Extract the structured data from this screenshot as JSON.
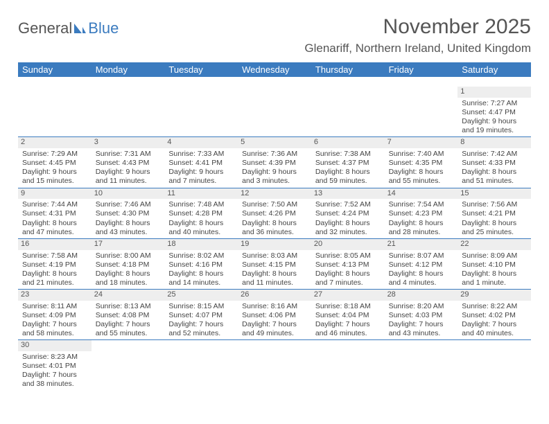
{
  "logo": {
    "text1": "General",
    "text2": "Blue"
  },
  "title": "November 2025",
  "location": "Glenariff, Northern Ireland, United Kingdom",
  "colors": {
    "header_bg": "#3b7bbf",
    "header_text": "#ffffff",
    "daynum_bg": "#eeeeee",
    "text": "#444444",
    "logo_gray": "#555555",
    "logo_blue": "#3b7bbf"
  },
  "weekdays": [
    "Sunday",
    "Monday",
    "Tuesday",
    "Wednesday",
    "Thursday",
    "Friday",
    "Saturday"
  ],
  "weeks": [
    [
      null,
      null,
      null,
      null,
      null,
      null,
      {
        "n": "1",
        "sr": "Sunrise: 7:27 AM",
        "ss": "Sunset: 4:47 PM",
        "d1": "Daylight: 9 hours",
        "d2": "and 19 minutes."
      }
    ],
    [
      {
        "n": "2",
        "sr": "Sunrise: 7:29 AM",
        "ss": "Sunset: 4:45 PM",
        "d1": "Daylight: 9 hours",
        "d2": "and 15 minutes."
      },
      {
        "n": "3",
        "sr": "Sunrise: 7:31 AM",
        "ss": "Sunset: 4:43 PM",
        "d1": "Daylight: 9 hours",
        "d2": "and 11 minutes."
      },
      {
        "n": "4",
        "sr": "Sunrise: 7:33 AM",
        "ss": "Sunset: 4:41 PM",
        "d1": "Daylight: 9 hours",
        "d2": "and 7 minutes."
      },
      {
        "n": "5",
        "sr": "Sunrise: 7:36 AM",
        "ss": "Sunset: 4:39 PM",
        "d1": "Daylight: 9 hours",
        "d2": "and 3 minutes."
      },
      {
        "n": "6",
        "sr": "Sunrise: 7:38 AM",
        "ss": "Sunset: 4:37 PM",
        "d1": "Daylight: 8 hours",
        "d2": "and 59 minutes."
      },
      {
        "n": "7",
        "sr": "Sunrise: 7:40 AM",
        "ss": "Sunset: 4:35 PM",
        "d1": "Daylight: 8 hours",
        "d2": "and 55 minutes."
      },
      {
        "n": "8",
        "sr": "Sunrise: 7:42 AM",
        "ss": "Sunset: 4:33 PM",
        "d1": "Daylight: 8 hours",
        "d2": "and 51 minutes."
      }
    ],
    [
      {
        "n": "9",
        "sr": "Sunrise: 7:44 AM",
        "ss": "Sunset: 4:31 PM",
        "d1": "Daylight: 8 hours",
        "d2": "and 47 minutes."
      },
      {
        "n": "10",
        "sr": "Sunrise: 7:46 AM",
        "ss": "Sunset: 4:30 PM",
        "d1": "Daylight: 8 hours",
        "d2": "and 43 minutes."
      },
      {
        "n": "11",
        "sr": "Sunrise: 7:48 AM",
        "ss": "Sunset: 4:28 PM",
        "d1": "Daylight: 8 hours",
        "d2": "and 40 minutes."
      },
      {
        "n": "12",
        "sr": "Sunrise: 7:50 AM",
        "ss": "Sunset: 4:26 PM",
        "d1": "Daylight: 8 hours",
        "d2": "and 36 minutes."
      },
      {
        "n": "13",
        "sr": "Sunrise: 7:52 AM",
        "ss": "Sunset: 4:24 PM",
        "d1": "Daylight: 8 hours",
        "d2": "and 32 minutes."
      },
      {
        "n": "14",
        "sr": "Sunrise: 7:54 AM",
        "ss": "Sunset: 4:23 PM",
        "d1": "Daylight: 8 hours",
        "d2": "and 28 minutes."
      },
      {
        "n": "15",
        "sr": "Sunrise: 7:56 AM",
        "ss": "Sunset: 4:21 PM",
        "d1": "Daylight: 8 hours",
        "d2": "and 25 minutes."
      }
    ],
    [
      {
        "n": "16",
        "sr": "Sunrise: 7:58 AM",
        "ss": "Sunset: 4:19 PM",
        "d1": "Daylight: 8 hours",
        "d2": "and 21 minutes."
      },
      {
        "n": "17",
        "sr": "Sunrise: 8:00 AM",
        "ss": "Sunset: 4:18 PM",
        "d1": "Daylight: 8 hours",
        "d2": "and 18 minutes."
      },
      {
        "n": "18",
        "sr": "Sunrise: 8:02 AM",
        "ss": "Sunset: 4:16 PM",
        "d1": "Daylight: 8 hours",
        "d2": "and 14 minutes."
      },
      {
        "n": "19",
        "sr": "Sunrise: 8:03 AM",
        "ss": "Sunset: 4:15 PM",
        "d1": "Daylight: 8 hours",
        "d2": "and 11 minutes."
      },
      {
        "n": "20",
        "sr": "Sunrise: 8:05 AM",
        "ss": "Sunset: 4:13 PM",
        "d1": "Daylight: 8 hours",
        "d2": "and 7 minutes."
      },
      {
        "n": "21",
        "sr": "Sunrise: 8:07 AM",
        "ss": "Sunset: 4:12 PM",
        "d1": "Daylight: 8 hours",
        "d2": "and 4 minutes."
      },
      {
        "n": "22",
        "sr": "Sunrise: 8:09 AM",
        "ss": "Sunset: 4:10 PM",
        "d1": "Daylight: 8 hours",
        "d2": "and 1 minute."
      }
    ],
    [
      {
        "n": "23",
        "sr": "Sunrise: 8:11 AM",
        "ss": "Sunset: 4:09 PM",
        "d1": "Daylight: 7 hours",
        "d2": "and 58 minutes."
      },
      {
        "n": "24",
        "sr": "Sunrise: 8:13 AM",
        "ss": "Sunset: 4:08 PM",
        "d1": "Daylight: 7 hours",
        "d2": "and 55 minutes."
      },
      {
        "n": "25",
        "sr": "Sunrise: 8:15 AM",
        "ss": "Sunset: 4:07 PM",
        "d1": "Daylight: 7 hours",
        "d2": "and 52 minutes."
      },
      {
        "n": "26",
        "sr": "Sunrise: 8:16 AM",
        "ss": "Sunset: 4:06 PM",
        "d1": "Daylight: 7 hours",
        "d2": "and 49 minutes."
      },
      {
        "n": "27",
        "sr": "Sunrise: 8:18 AM",
        "ss": "Sunset: 4:04 PM",
        "d1": "Daylight: 7 hours",
        "d2": "and 46 minutes."
      },
      {
        "n": "28",
        "sr": "Sunrise: 8:20 AM",
        "ss": "Sunset: 4:03 PM",
        "d1": "Daylight: 7 hours",
        "d2": "and 43 minutes."
      },
      {
        "n": "29",
        "sr": "Sunrise: 8:22 AM",
        "ss": "Sunset: 4:02 PM",
        "d1": "Daylight: 7 hours",
        "d2": "and 40 minutes."
      }
    ],
    [
      {
        "n": "30",
        "sr": "Sunrise: 8:23 AM",
        "ss": "Sunset: 4:01 PM",
        "d1": "Daylight: 7 hours",
        "d2": "and 38 minutes."
      },
      null,
      null,
      null,
      null,
      null,
      null
    ]
  ]
}
